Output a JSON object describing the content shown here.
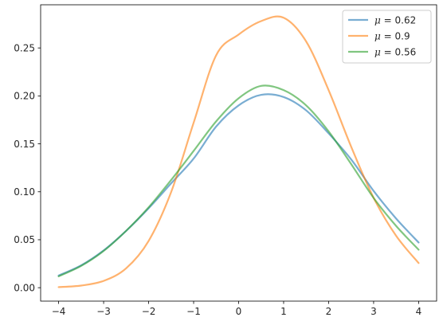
{
  "chart_data": {
    "type": "line",
    "title": "",
    "xlabel": "",
    "ylabel": "",
    "xlim": [
      -4.4,
      4.4
    ],
    "ylim": [
      -0.014,
      0.295
    ],
    "xticks": [
      -4,
      -3,
      -2,
      -1,
      0,
      1,
      2,
      3,
      4
    ],
    "xtick_labels": [
      "−4",
      "−3",
      "−2",
      "−1",
      "0",
      "1",
      "2",
      "3",
      "4"
    ],
    "yticks": [
      0.0,
      0.05,
      0.1,
      0.15,
      0.2,
      0.25
    ],
    "ytick_labels": [
      "0.00",
      "0.05",
      "0.10",
      "0.15",
      "0.20",
      "0.25"
    ],
    "grid": false,
    "legend_position": "top-right",
    "x": [
      -4.0,
      -3.5,
      -3.0,
      -2.5,
      -2.0,
      -1.5,
      -1.0,
      -0.5,
      0.0,
      0.5,
      1.0,
      1.5,
      2.0,
      2.5,
      3.0,
      3.5,
      4.0
    ],
    "series": [
      {
        "name": "0.62",
        "color": "#1f77b4",
        "values": [
          0.0127,
          0.0233,
          0.0389,
          0.0593,
          0.0828,
          0.1088,
          0.1346,
          0.168,
          0.1901,
          0.2011,
          0.1988,
          0.1849,
          0.1609,
          0.1338,
          0.1009,
          0.0721,
          0.0471
        ]
      },
      {
        "name": "0.9",
        "color": "#ff7f0e",
        "values": [
          0.0006,
          0.0022,
          0.0071,
          0.0202,
          0.0488,
          0.0997,
          0.172,
          0.2423,
          0.264,
          0.278,
          0.2815,
          0.2568,
          0.206,
          0.1471,
          0.0937,
          0.0541,
          0.0257
        ]
      },
      {
        "name": "0.56",
        "color": "#2ca02c",
        "values": [
          0.0118,
          0.0227,
          0.0383,
          0.0593,
          0.0838,
          0.1123,
          0.1426,
          0.1734,
          0.1975,
          0.2104,
          0.206,
          0.1901,
          0.163,
          0.129,
          0.0936,
          0.0644,
          0.0396
        ]
      }
    ]
  }
}
